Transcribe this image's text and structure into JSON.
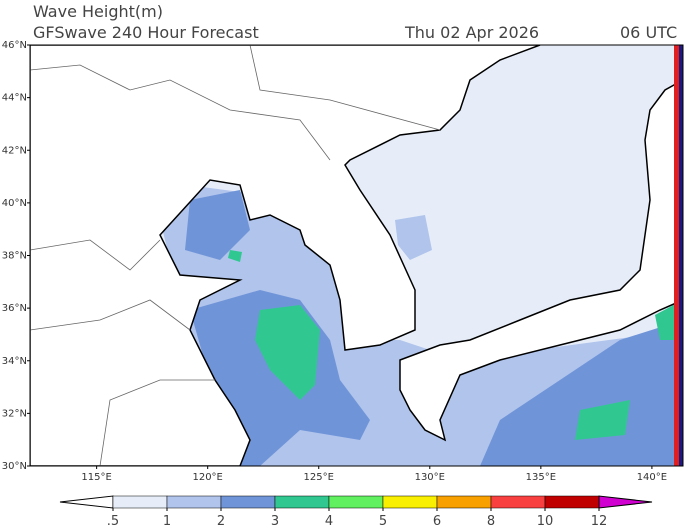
{
  "header": {
    "title": "Wave Height(m)",
    "subtitle": "GFSwave 240 Hour Forecast",
    "date": "Thu 02 Apr 2026",
    "time": "06 UTC"
  },
  "map": {
    "xlim": [
      112,
      141.4
    ],
    "ylim": [
      30,
      46
    ],
    "lat_ticks": [
      {
        "value": 30,
        "label": "30°N"
      },
      {
        "value": 32,
        "label": "32°N"
      },
      {
        "value": 34,
        "label": "34°N"
      },
      {
        "value": 36,
        "label": "36°N"
      },
      {
        "value": 38,
        "label": "38°N"
      },
      {
        "value": 40,
        "label": "40°N"
      },
      {
        "value": 42,
        "label": "42°N"
      },
      {
        "value": 44,
        "label": "44°N"
      },
      {
        "value": 46,
        "label": "46°N"
      }
    ],
    "lon_ticks": [
      {
        "value": 115,
        "label": "115°E"
      },
      {
        "value": 120,
        "label": "120°E"
      },
      {
        "value": 125,
        "label": "125°E"
      },
      {
        "value": 130,
        "label": "130°E"
      },
      {
        "value": 135,
        "label": "135°E"
      },
      {
        "value": 140,
        "label": "140°E"
      }
    ]
  },
  "colorbar": {
    "levels": [
      {
        "value": 0.5,
        "label": ".5"
      },
      1,
      2,
      3,
      4,
      5,
      6,
      8,
      10,
      12
    ],
    "colors": [
      "#ffffff",
      "#e6edf8",
      "#b0c4ec",
      "#7094d8",
      "#30c890",
      "#60f060",
      "#f8f000",
      "#f8a000",
      "#f84040",
      "#c00000",
      "#d000d0"
    ]
  }
}
